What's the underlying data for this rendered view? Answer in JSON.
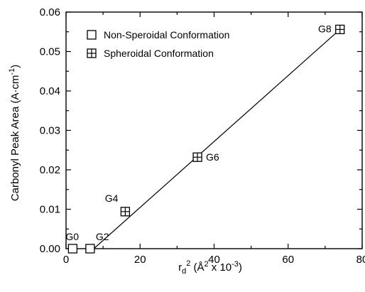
{
  "chart_data": {
    "type": "scatter",
    "xlabel_main": "r",
    "xlabel_sub": "d",
    "xlabel_sup": "2",
    "xlabel_rest": " (Å",
    "xlabel_sup2": "2",
    "xlabel_end": " x 10",
    "xlabel_sup3": "-3",
    "xlabel_close": ")",
    "ylabel": "Carbonyl Peak Area (A·cm",
    "ylabel_sup": "-1",
    "ylabel_close": ")",
    "xlim": [
      0,
      80
    ],
    "ylim": [
      0,
      0.06
    ],
    "x_ticks": [
      "0",
      "20",
      "40",
      "60",
      "80"
    ],
    "x_tick_values": [
      0,
      20,
      40,
      60,
      80
    ],
    "y_ticks": [
      "0.00",
      "0.01",
      "0.02",
      "0.03",
      "0.04",
      "0.05",
      "0.06"
    ],
    "y_tick_values": [
      0,
      0.01,
      0.02,
      0.03,
      0.04,
      0.05,
      0.06
    ],
    "legend": [
      {
        "label": "Non-Speroidal Conformation",
        "marker": "open-square"
      },
      {
        "label": "Spheroidal Conformation",
        "marker": "crossed-square"
      }
    ],
    "series": [
      {
        "name": "Non-Speroidal Conformation",
        "marker": "open-square",
        "points": [
          {
            "x": 1.8,
            "y": 0.0,
            "label": "G0"
          },
          {
            "x": 6.5,
            "y": 0.0,
            "label": "G2"
          }
        ]
      },
      {
        "name": "Spheroidal Conformation",
        "marker": "crossed-square",
        "points": [
          {
            "x": 16.0,
            "y": 0.0094,
            "label": "G4"
          },
          {
            "x": 35.5,
            "y": 0.0232,
            "label": "G6"
          },
          {
            "x": 74.0,
            "y": 0.0556,
            "label": "G8"
          }
        ]
      }
    ],
    "fit_line": {
      "x": [
        7.5,
        74.0
      ],
      "y": [
        0.0,
        0.0556
      ]
    }
  }
}
